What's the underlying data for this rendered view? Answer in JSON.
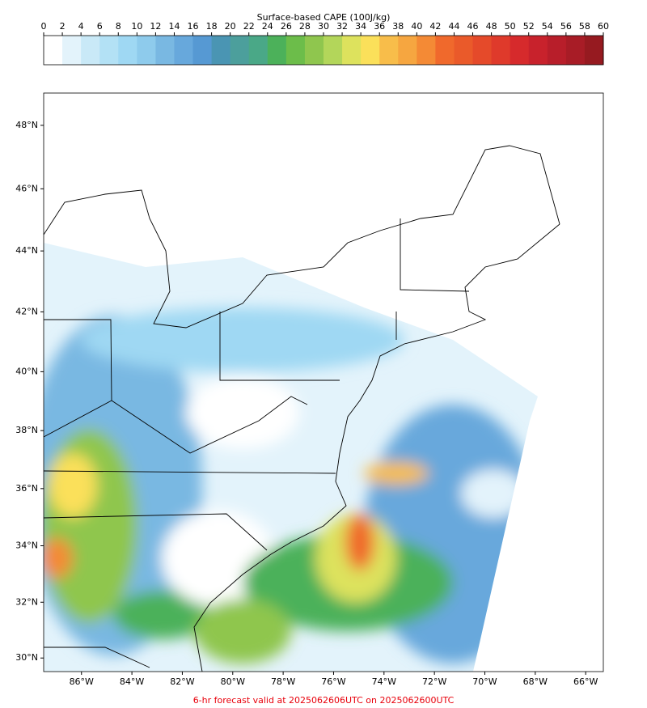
{
  "chart_data": {
    "type": "map",
    "colorbar": {
      "title": "Surface-based CAPE (100J/kg)",
      "ticks": [
        0,
        2,
        4,
        6,
        8,
        10,
        12,
        14,
        16,
        18,
        20,
        22,
        24,
        26,
        28,
        30,
        32,
        34,
        36,
        38,
        40,
        42,
        44,
        46,
        48,
        50,
        52,
        54,
        56,
        58,
        60
      ],
      "colors": [
        "#ffffff",
        "#e3f3fb",
        "#c9e9f7",
        "#b3e1f5",
        "#9fd8f3",
        "#8ecbec",
        "#79b8e2",
        "#67a8dc",
        "#5699d3",
        "#4a95b3",
        "#4c9f9c",
        "#4aa887",
        "#4cb15a",
        "#6cbd4a",
        "#8fc64e",
        "#b3d65a",
        "#dde25d",
        "#fbe05a",
        "#f8bd4a",
        "#f6a640",
        "#f48a35",
        "#f0692c",
        "#ea5a2a",
        "#e54a2a",
        "#df3a2b",
        "#d62a2c",
        "#c8222c",
        "#b81e2a",
        "#a81c26",
        "#961a20"
      ]
    },
    "xlim": [
      -87.5,
      -65.3
    ],
    "xticks": [
      {
        "value": -86,
        "label": "86°W"
      },
      {
        "value": -84,
        "label": "84°W"
      },
      {
        "value": -82,
        "label": "82°W"
      },
      {
        "value": -80,
        "label": "80°W"
      },
      {
        "value": -78,
        "label": "78°W"
      },
      {
        "value": -76,
        "label": "76°W"
      },
      {
        "value": -74,
        "label": "74°W"
      },
      {
        "value": -72,
        "label": "72°W"
      },
      {
        "value": -70,
        "label": "70°W"
      },
      {
        "value": -68,
        "label": "68°W"
      },
      {
        "value": -66,
        "label": "66°W"
      }
    ],
    "ylim": [
      29.51,
      49.0
    ],
    "yticks": [
      {
        "value": 30,
        "label": "30°N"
      },
      {
        "value": 32,
        "label": "32°N"
      },
      {
        "value": 34,
        "label": "34°N"
      },
      {
        "value": 36,
        "label": "36°N"
      },
      {
        "value": 38,
        "label": "38°N"
      },
      {
        "value": 40,
        "label": "40°N"
      },
      {
        "value": 42,
        "label": "42°N"
      },
      {
        "value": 44,
        "label": "44°N"
      },
      {
        "value": 46,
        "label": "46°N"
      },
      {
        "value": 48,
        "label": "48°N"
      }
    ],
    "footer": "6-hr forecast valid at 2025062606UTC on 2025062600UTC"
  }
}
